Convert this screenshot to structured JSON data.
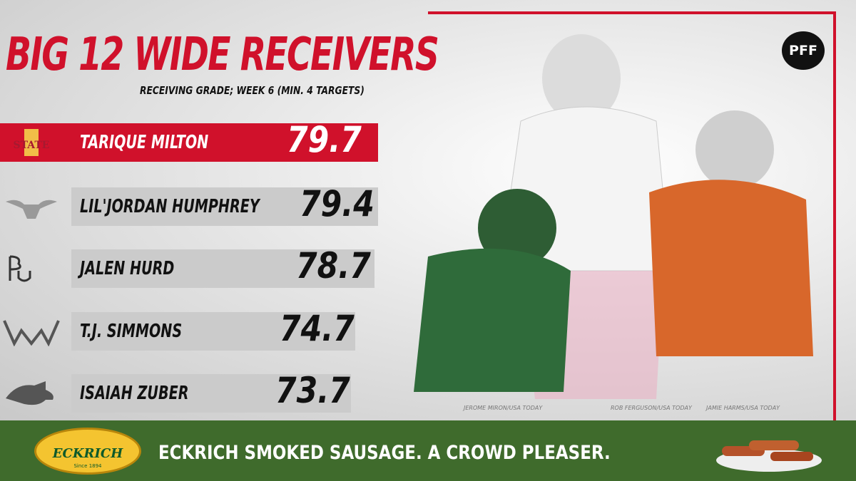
{
  "header": {
    "title": "BIG 12 WIDE RECEIVERS",
    "subtitle": "RECEIVING GRADE; WEEK 6 (MIN. 4 TARGETS)",
    "brand": "PFF"
  },
  "rows": [
    {
      "logo_text": "STATE",
      "name": "TARIQUE MILTON",
      "grade": "79.7"
    },
    {
      "name": "LIL'JORDAN HUMPHREY",
      "grade": "79.4"
    },
    {
      "name": "JALEN HURD",
      "grade": "78.7"
    },
    {
      "name": "T.J. SIMMONS",
      "grade": "74.7"
    },
    {
      "name": "ISAIAH ZUBER",
      "grade": "73.7"
    }
  ],
  "credits": [
    "JEROME MIRON/USA TODAY",
    "ROB FERGUSON/USA TODAY",
    "JAMIE HARMS/USA TODAY"
  ],
  "ad": {
    "brand": "ECKRICH",
    "since": "Since 1894",
    "slogan": "ECKRICH SMOKED SAUSAGE. A CROWD PLEASER."
  }
}
